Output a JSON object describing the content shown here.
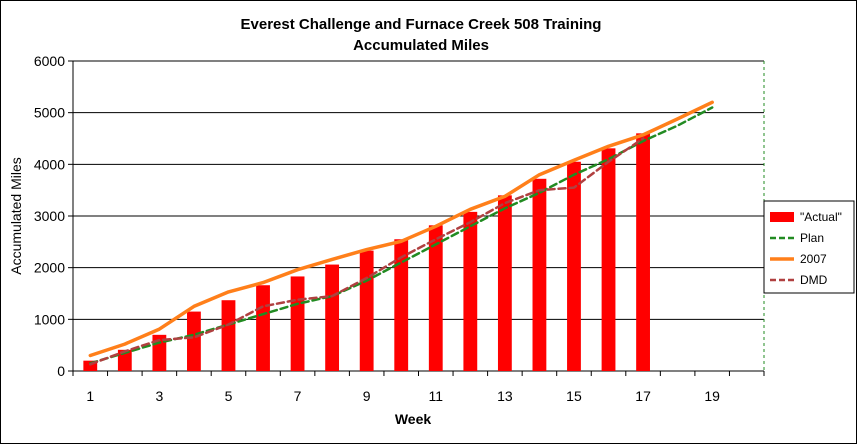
{
  "chart_data": {
    "type": "bar",
    "title": "Everest Challenge and Furnace Creek 508 Training",
    "subtitle": "Accumulated Miles",
    "xlabel": "Week",
    "ylabel": "Accumulated Miles",
    "xlim": [
      0.5,
      20.5
    ],
    "ylim": [
      0,
      6000
    ],
    "y_ticks": [
      0,
      1000,
      2000,
      3000,
      4000,
      5000,
      6000
    ],
    "x_ticks": [
      1,
      3,
      5,
      7,
      9,
      11,
      13,
      15,
      17,
      19
    ],
    "grid": true,
    "legend_position": "right",
    "series": [
      {
        "name": "\"Actual\"",
        "type": "bar",
        "color": "#ff0000",
        "x": [
          1,
          2,
          3,
          4,
          5,
          6,
          7,
          8,
          9,
          10,
          11,
          12,
          13,
          14,
          15,
          16,
          17
        ],
        "values": [
          200,
          410,
          700,
          1150,
          1370,
          1660,
          1830,
          2060,
          2330,
          2550,
          2820,
          3080,
          3400,
          3720,
          4050,
          4310,
          4600
        ]
      },
      {
        "name": "Plan",
        "type": "line",
        "style": "dashed",
        "color": "#228b22",
        "x": [
          1,
          2,
          3,
          4,
          5,
          6,
          7,
          8,
          9,
          10,
          11,
          12,
          13,
          14,
          15,
          16,
          17,
          18,
          19
        ],
        "values": [
          150,
          350,
          550,
          700,
          900,
          1100,
          1300,
          1450,
          1750,
          2100,
          2450,
          2800,
          3150,
          3450,
          3800,
          4100,
          4450,
          4750,
          5100
        ]
      },
      {
        "name": "2007",
        "type": "line",
        "style": "solid",
        "color": "#ff7f1a",
        "x": [
          1,
          2,
          3,
          4,
          5,
          6,
          7,
          8,
          9,
          10,
          11,
          12,
          13,
          14,
          15,
          16,
          17,
          18,
          19
        ],
        "values": [
          300,
          520,
          810,
          1250,
          1530,
          1710,
          1960,
          2160,
          2350,
          2510,
          2800,
          3130,
          3380,
          3800,
          4080,
          4350,
          4570,
          4880,
          5200
        ]
      },
      {
        "name": "DMD",
        "type": "line",
        "style": "dashed",
        "color": "#b04040",
        "x": [
          1,
          2,
          3,
          4,
          5,
          6,
          7,
          8,
          9,
          10,
          11,
          12,
          13,
          14,
          15,
          16,
          17
        ],
        "values": [
          130,
          380,
          600,
          650,
          900,
          1250,
          1380,
          1450,
          1800,
          2200,
          2550,
          2880,
          3250,
          3500,
          3550,
          4050,
          4500
        ]
      }
    ]
  }
}
